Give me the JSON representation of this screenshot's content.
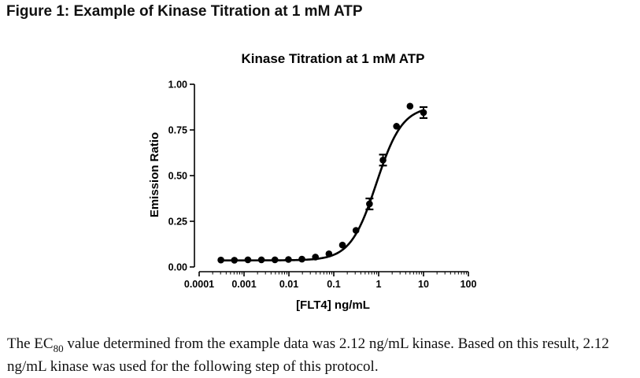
{
  "figure_heading": "Figure 1: Example of Kinase Titration at 1 mM ATP",
  "caption": {
    "part1": "The EC",
    "subscript": "80",
    "part2": " value determined from the example data was 2.12 ng/mL kinase.  Based on this result, 2.12 ng/mL kinase was used for the following step of this protocol."
  },
  "chart_data": {
    "type": "scatter",
    "title": "Kinase Titration at 1 mM ATP",
    "xlabel": "[FLT4] ng/mL",
    "ylabel": "Emission Ratio",
    "xscale": "log",
    "xlim": [
      0.0001,
      100
    ],
    "ylim": [
      0,
      1.0
    ],
    "x_ticks": [
      0.0001,
      0.001,
      0.01,
      0.1,
      1,
      10,
      100
    ],
    "x_tick_labels": [
      "0.0001",
      "0.001",
      "0.01",
      "0.1",
      "1",
      "10",
      "100"
    ],
    "y_ticks": [
      0,
      0.25,
      0.5,
      0.75,
      1.0
    ],
    "y_tick_labels": [
      "0.00",
      "0.25",
      "0.50",
      "0.75",
      "1.00"
    ],
    "grid": false,
    "points": [
      {
        "x": 0.000305,
        "y": 0.038
      },
      {
        "x": 0.00061,
        "y": 0.037
      },
      {
        "x": 0.00122,
        "y": 0.039
      },
      {
        "x": 0.00244,
        "y": 0.039
      },
      {
        "x": 0.00488,
        "y": 0.039
      },
      {
        "x": 0.00977,
        "y": 0.041
      },
      {
        "x": 0.0195,
        "y": 0.043
      },
      {
        "x": 0.039,
        "y": 0.054
      },
      {
        "x": 0.078,
        "y": 0.072
      },
      {
        "x": 0.156,
        "y": 0.12
      },
      {
        "x": 0.3125,
        "y": 0.2
      },
      {
        "x": 0.625,
        "y": 0.345,
        "err": 0.03
      },
      {
        "x": 1.25,
        "y": 0.585,
        "err": 0.03
      },
      {
        "x": 2.5,
        "y": 0.77
      },
      {
        "x": 5,
        "y": 0.88
      },
      {
        "x": 10,
        "y": 0.845,
        "err": 0.03
      }
    ],
    "fit": {
      "bottom": 0.036,
      "top": 0.88,
      "logEC50": -0.05,
      "hill": 1.5
    }
  }
}
